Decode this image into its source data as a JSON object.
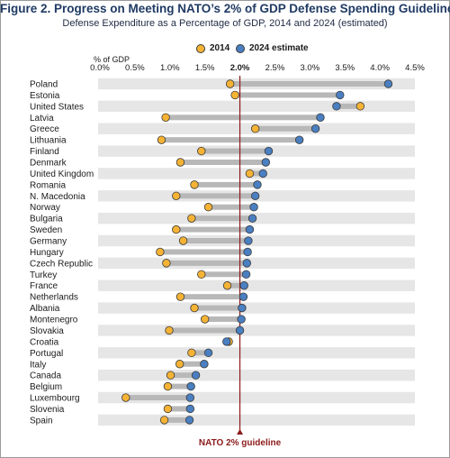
{
  "chart_data": {
    "type": "dumbbell",
    "title": "Figure 2. Progress on Meeting NATO’s 2% of GDP Defense Spending Guideline",
    "subtitle": "Defense Expenditure as a Percentage of GDP, 2014 and 2024 (estimated)",
    "axis_title": "% of GDP",
    "xlim": [
      0,
      4.5
    ],
    "x_ticks": [
      "0.0%",
      "0.5%",
      "1.0%",
      "1.5%",
      "2.0%",
      "2.5%",
      "3.0%",
      "3.5%",
      "4.0%",
      "4.5%"
    ],
    "bold_tick": "2.0%",
    "guideline": {
      "value": 2.0,
      "label": "NATO 2% guideline",
      "color": "#8b1a1a"
    },
    "series": [
      {
        "name": "2014",
        "color": "#f5b335"
      },
      {
        "name": "2024 estimate",
        "color": "#4a7fc1"
      }
    ],
    "categories": [
      "Poland",
      "Estonia",
      "United States",
      "Latvia",
      "Greece",
      "Lithuania",
      "Finland",
      "Denmark",
      "United Kingdom",
      "Romania",
      "N. Macedonia",
      "Norway",
      "Bulgaria",
      "Sweden",
      "Germany",
      "Hungary",
      "Czech Republic",
      "Turkey",
      "France",
      "Netherlands",
      "Albania",
      "Montenegro",
      "Slovakia",
      "Croatia",
      "Portugal",
      "Italy",
      "Canada",
      "Belgium",
      "Luxembourg",
      "Slovenia",
      "Spain"
    ],
    "values_2014": [
      1.86,
      1.93,
      3.72,
      0.94,
      2.22,
      0.88,
      1.45,
      1.15,
      2.14,
      1.35,
      1.09,
      1.55,
      1.31,
      1.09,
      1.19,
      0.86,
      0.95,
      1.45,
      1.82,
      1.15,
      1.35,
      1.5,
      0.99,
      1.84,
      1.31,
      1.14,
      1.01,
      0.97,
      0.37,
      0.97,
      0.92
    ],
    "values_2024": [
      4.12,
      3.43,
      3.38,
      3.15,
      3.08,
      2.85,
      2.41,
      2.37,
      2.33,
      2.25,
      2.22,
      2.2,
      2.18,
      2.14,
      2.12,
      2.11,
      2.1,
      2.09,
      2.06,
      2.05,
      2.03,
      2.02,
      2.0,
      1.81,
      1.55,
      1.49,
      1.37,
      1.3,
      1.29,
      1.29,
      1.28
    ],
    "grid": "alternating row bands"
  }
}
